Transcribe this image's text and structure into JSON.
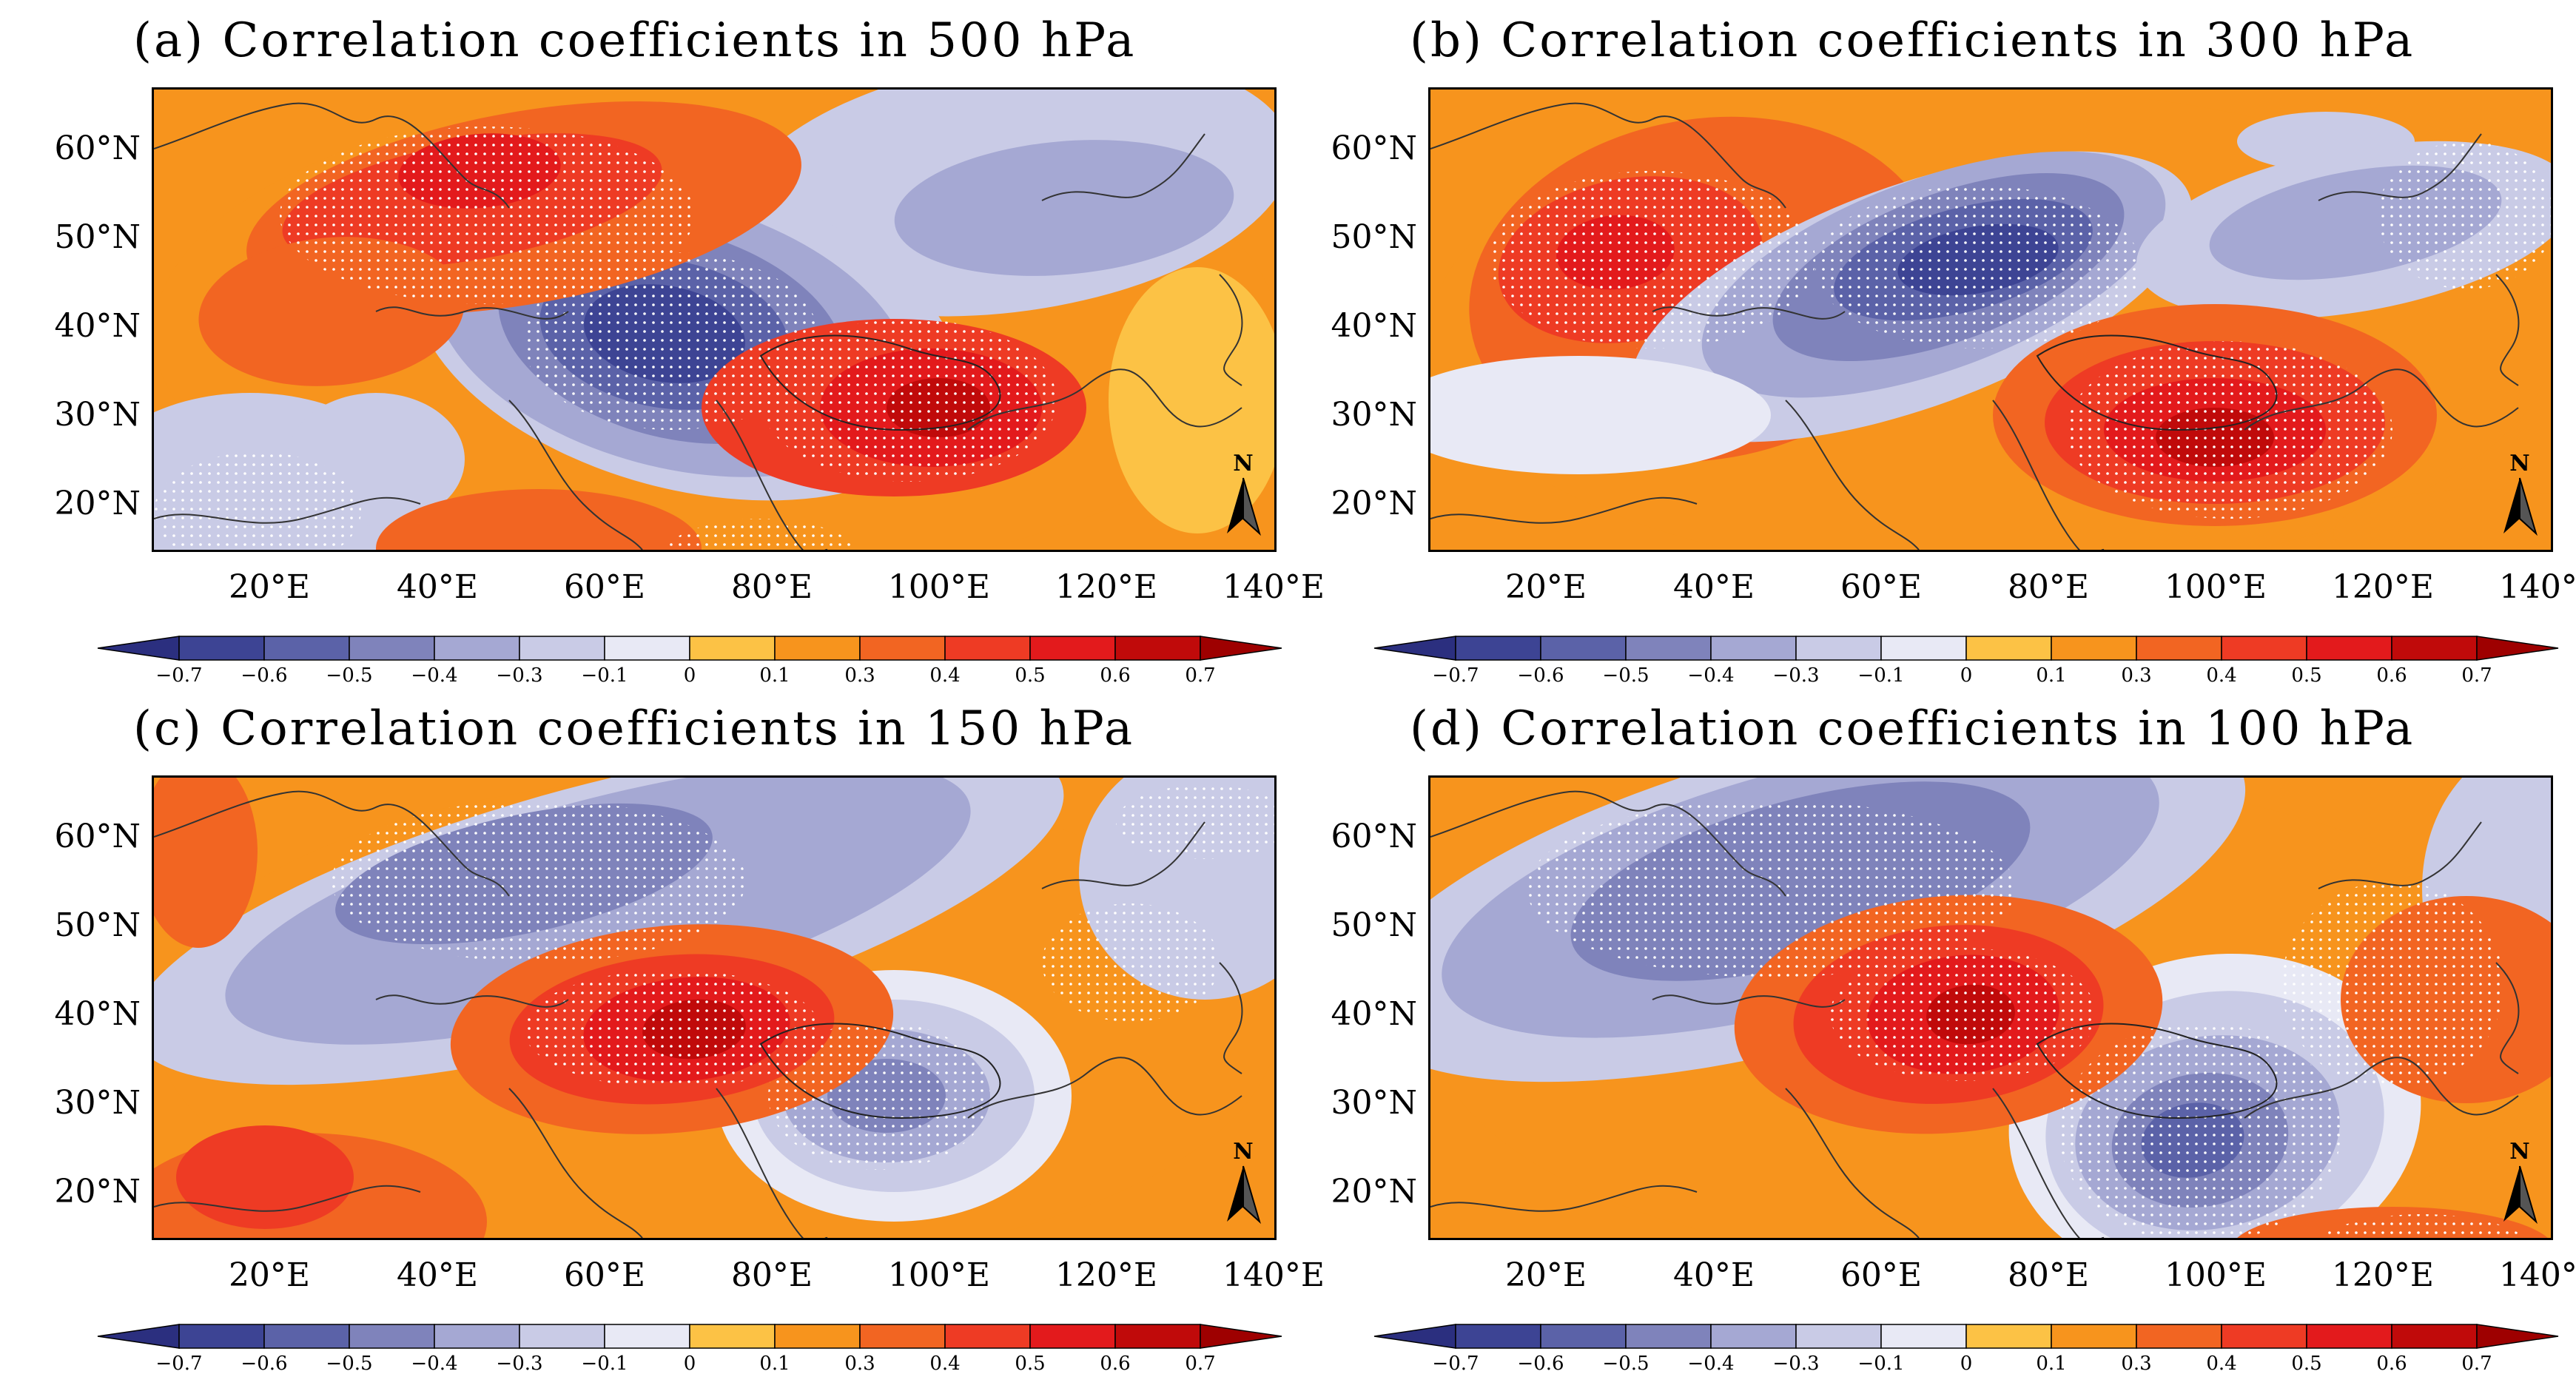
{
  "panels": [
    {
      "id": "a",
      "title": "(a) Correlation coefficients in 500 hPa"
    },
    {
      "id": "b",
      "title": "(b) Correlation coefficients in 300 hPa"
    },
    {
      "id": "c",
      "title": "(c) Correlation coefficients in 150 hPa"
    },
    {
      "id": "d",
      "title": "(d) Correlation coefficients in 100 hPa"
    }
  ],
  "lat_labels": [
    "60°N",
    "50°N",
    "40°N",
    "30°N",
    "20°N"
  ],
  "lon_labels": [
    "20°E",
    "40°E",
    "60°E",
    "80°E",
    "100°E",
    "120°E",
    "140°E"
  ],
  "north_arrow": "N",
  "colorbar": {
    "labels": [
      "−0.7",
      "−0.6",
      "−0.5",
      "−0.4",
      "−0.3",
      "−0.1",
      "0",
      "0.1",
      "0.3",
      "0.4",
      "0.5",
      "0.6",
      "0.7"
    ],
    "colors": [
      "#2b2f7f",
      "#3d4494",
      "#5b62a8",
      "#7f83bb",
      "#a5a8d3",
      "#c9cbe6",
      "#e8e9f5",
      "#fcc245",
      "#f7941d",
      "#f26522",
      "#ee3b24",
      "#e31a1c",
      "#c00a0a",
      "#9e0000"
    ]
  },
  "legend_colors": {
    "strong_neg": "#2b2f7f",
    "mid_neg": "#7f83bb",
    "weak_neg": "#c9cbe6",
    "zero_pos": "#fcc245",
    "mid_pos": "#f7941d",
    "strong_pos": "#e31a1c"
  }
}
